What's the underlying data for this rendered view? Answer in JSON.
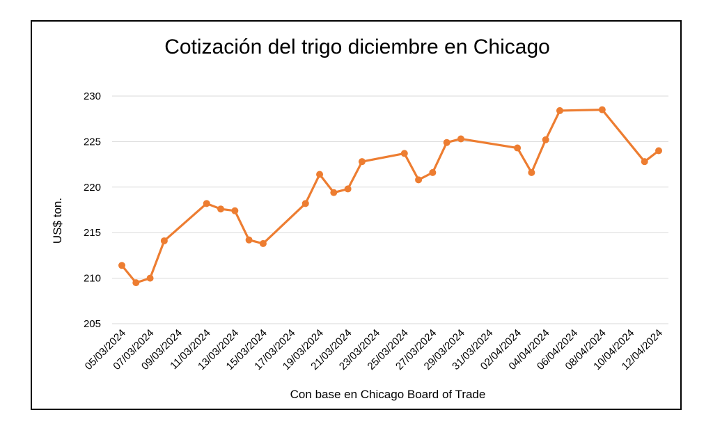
{
  "chart_data": {
    "type": "line",
    "title": "Cotización del trigo diciembre en Chicago",
    "xlabel": "Con base en Chicago Board of Trade",
    "ylabel": "US$ ton.",
    "ylim": [
      205,
      230
    ],
    "yticks": [
      205,
      210,
      215,
      220,
      225,
      230
    ],
    "grid": true,
    "x_tick_labels": [
      "05/03/2024",
      "07/03/2024",
      "09/03/2024",
      "11/03/2024",
      "13/03/2024",
      "15/03/2024",
      "17/03/2024",
      "19/03/2024",
      "21/03/2024",
      "23/03/2024",
      "25/03/2024",
      "27/03/2024",
      "29/03/2024",
      "31/03/2024",
      "02/04/2024",
      "04/04/2024",
      "06/04/2024",
      "08/04/2024",
      "10/04/2024",
      "12/04/2024"
    ],
    "series": [
      {
        "color": "#ED7D31",
        "x": [
          "05/03/2024",
          "06/03/2024",
          "07/03/2024",
          "08/03/2024",
          "11/03/2024",
          "12/03/2024",
          "13/03/2024",
          "14/03/2024",
          "15/03/2024",
          "18/03/2024",
          "19/03/2024",
          "20/03/2024",
          "21/03/2024",
          "22/03/2024",
          "25/03/2024",
          "26/03/2024",
          "27/03/2024",
          "28/03/2024",
          "29/03/2024",
          "02/04/2024",
          "03/04/2024",
          "04/04/2024",
          "05/04/2024",
          "08/04/2024",
          "11/04/2024",
          "12/04/2024"
        ],
        "values": [
          211.4,
          209.5,
          210.0,
          214.1,
          218.2,
          217.6,
          217.4,
          214.2,
          213.8,
          218.2,
          221.4,
          219.4,
          219.8,
          222.8,
          223.7,
          220.8,
          221.6,
          224.9,
          225.3,
          224.3,
          221.6,
          225.2,
          228.4,
          228.5,
          222.8,
          224.0
        ]
      }
    ]
  }
}
